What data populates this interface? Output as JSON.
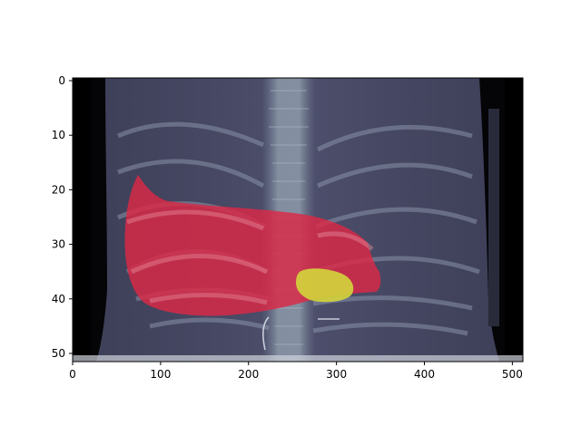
{
  "figure": {
    "xlim": [
      0,
      512
    ],
    "ylim": [
      51.5,
      -0.5
    ],
    "x_ticks": [
      {
        "value": 0,
        "label": "0"
      },
      {
        "value": 100,
        "label": "100"
      },
      {
        "value": 200,
        "label": "200"
      },
      {
        "value": 300,
        "label": "300"
      },
      {
        "value": 400,
        "label": "400"
      },
      {
        "value": 500,
        "label": "500"
      }
    ],
    "y_ticks": [
      {
        "value": 0,
        "label": "0"
      },
      {
        "value": 10,
        "label": "10"
      },
      {
        "value": 20,
        "label": "20"
      },
      {
        "value": 30,
        "label": "30"
      },
      {
        "value": 40,
        "label": "40"
      },
      {
        "value": 50,
        "label": "50"
      }
    ],
    "colors": {
      "liver_overlay": "#dc2846",
      "tumor_overlay": "#d2d23c",
      "ct_tissue": "#4a4c68",
      "ct_background": "#050508"
    }
  }
}
